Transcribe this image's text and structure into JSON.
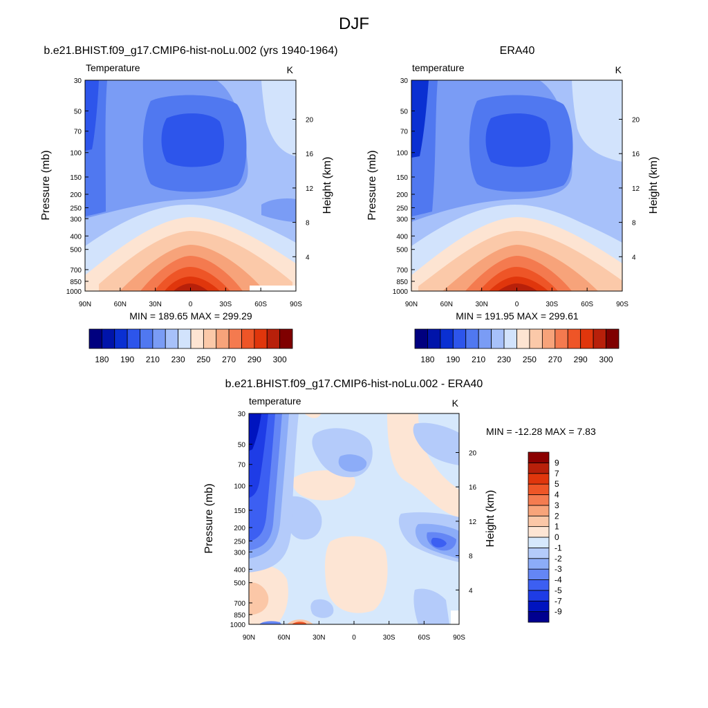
{
  "figure": {
    "season": "DJF"
  },
  "palettes": {
    "absolute": [
      "#00007f",
      "#0014aa",
      "#0a30d2",
      "#2d55eb",
      "#5078f0",
      "#7a9cf5",
      "#a7c1fa",
      "#d2e3fc",
      "#fde4d2",
      "#fbc9a9",
      "#f7a37a",
      "#f47a4f",
      "#ee5527",
      "#e0360c",
      "#b8200a",
      "#7f0000"
    ],
    "difference": [
      "#00008f",
      "#0014bf",
      "#1e3ce6",
      "#3c5ff2",
      "#6486f5",
      "#8cacf8",
      "#b4cbfa",
      "#d6e8fc",
      "#fde5d4",
      "#fbc7a7",
      "#f8a47a",
      "#f47c50",
      "#ee5627",
      "#e0360c",
      "#b8200a",
      "#8b0000"
    ]
  },
  "panels": [
    {
      "id": "model",
      "title": "b.e21.BHIST.f09_g17.CMIP6-hist-noLu.002 (yrs 1940-1964)",
      "left_label": "Temperature",
      "right_label": "K",
      "ylabel": "Pressure (mb)",
      "y2label": "Height (km)",
      "stats": "MIN = 189.65  MAX = 299.29",
      "legend_labels": [
        "180",
        "190",
        "210",
        "230",
        "250",
        "270",
        "290",
        "300"
      ]
    },
    {
      "id": "obs",
      "title": "ERA40",
      "left_label": "temperature",
      "right_label": "K",
      "ylabel": "Pressure (mb)",
      "y2label": "Height (km)",
      "stats": "MIN = 191.95  MAX = 299.61",
      "legend_labels": [
        "180",
        "190",
        "210",
        "230",
        "250",
        "270",
        "290",
        "300"
      ]
    },
    {
      "id": "diff",
      "title": "b.e21.BHIST.f09_g17.CMIP6-hist-noLu.002 - ERA40",
      "left_label": "temperature",
      "right_label": "K",
      "ylabel": "Pressure (mb)",
      "y2label": "Height (km)",
      "stats": "MIN = -12.28  MAX =   7.83",
      "legend_labels": [
        "9",
        "7",
        "5",
        "4",
        "3",
        "2",
        "1",
        "0",
        "-1",
        "-2",
        "-3",
        "-4",
        "-5",
        "-7",
        "-9"
      ]
    }
  ],
  "chart_data": [
    {
      "type": "heatmap",
      "title": "b.e21.BHIST.f09_g17.CMIP6-hist-noLu.002 (yrs 1940-1964)",
      "xlabel": "",
      "ylabel": "Pressure (mb)",
      "y2label": "Height (km)",
      "units": "K",
      "x_ticks": [
        "90N",
        "60N",
        "30N",
        "0",
        "30S",
        "60S",
        "90S"
      ],
      "y_ticks": [
        30,
        50,
        70,
        100,
        150,
        200,
        250,
        300,
        400,
        500,
        700,
        850,
        1000
      ],
      "y2_ticks": [
        4,
        8,
        12,
        16,
        20
      ],
      "ylim": [
        30,
        1000
      ],
      "y_scale": "log",
      "min": 189.65,
      "max": 299.29,
      "contour_levels": [
        180,
        185,
        190,
        200,
        210,
        220,
        230,
        240,
        250,
        260,
        270,
        280,
        290,
        295,
        300
      ],
      "colorbar_labels": [
        180,
        190,
        210,
        230,
        250,
        270,
        290,
        300
      ]
    },
    {
      "type": "heatmap",
      "title": "ERA40",
      "ylabel": "Pressure (mb)",
      "y2label": "Height (km)",
      "units": "K",
      "x_ticks": [
        "90N",
        "60N",
        "30N",
        "0",
        "30S",
        "60S",
        "90S"
      ],
      "y_ticks": [
        30,
        50,
        70,
        100,
        150,
        200,
        250,
        300,
        400,
        500,
        700,
        850,
        1000
      ],
      "y2_ticks": [
        4,
        8,
        12,
        16,
        20
      ],
      "ylim": [
        30,
        1000
      ],
      "y_scale": "log",
      "min": 191.95,
      "max": 299.61,
      "contour_levels": [
        180,
        185,
        190,
        200,
        210,
        220,
        230,
        240,
        250,
        260,
        270,
        280,
        290,
        295,
        300
      ],
      "colorbar_labels": [
        180,
        190,
        210,
        230,
        250,
        270,
        290,
        300
      ]
    },
    {
      "type": "heatmap",
      "title": "b.e21.BHIST.f09_g17.CMIP6-hist-noLu.002 - ERA40",
      "ylabel": "Pressure (mb)",
      "y2label": "Height (km)",
      "units": "K",
      "x_ticks": [
        "90N",
        "60N",
        "30N",
        "0",
        "30S",
        "60S",
        "90S"
      ],
      "y_ticks": [
        30,
        50,
        70,
        100,
        150,
        200,
        250,
        300,
        400,
        500,
        700,
        850,
        1000
      ],
      "y2_ticks": [
        4,
        8,
        12,
        16,
        20
      ],
      "ylim": [
        30,
        1000
      ],
      "y_scale": "log",
      "min": -12.28,
      "max": 7.83,
      "contour_levels": [
        -9,
        -7,
        -5,
        -4,
        -3,
        -2,
        -1,
        0,
        1,
        2,
        3,
        4,
        5,
        7,
        9
      ],
      "colorbar_labels": [
        9,
        7,
        5,
        4,
        3,
        2,
        1,
        0,
        -1,
        -2,
        -3,
        -4,
        -5,
        -7,
        -9
      ]
    }
  ]
}
